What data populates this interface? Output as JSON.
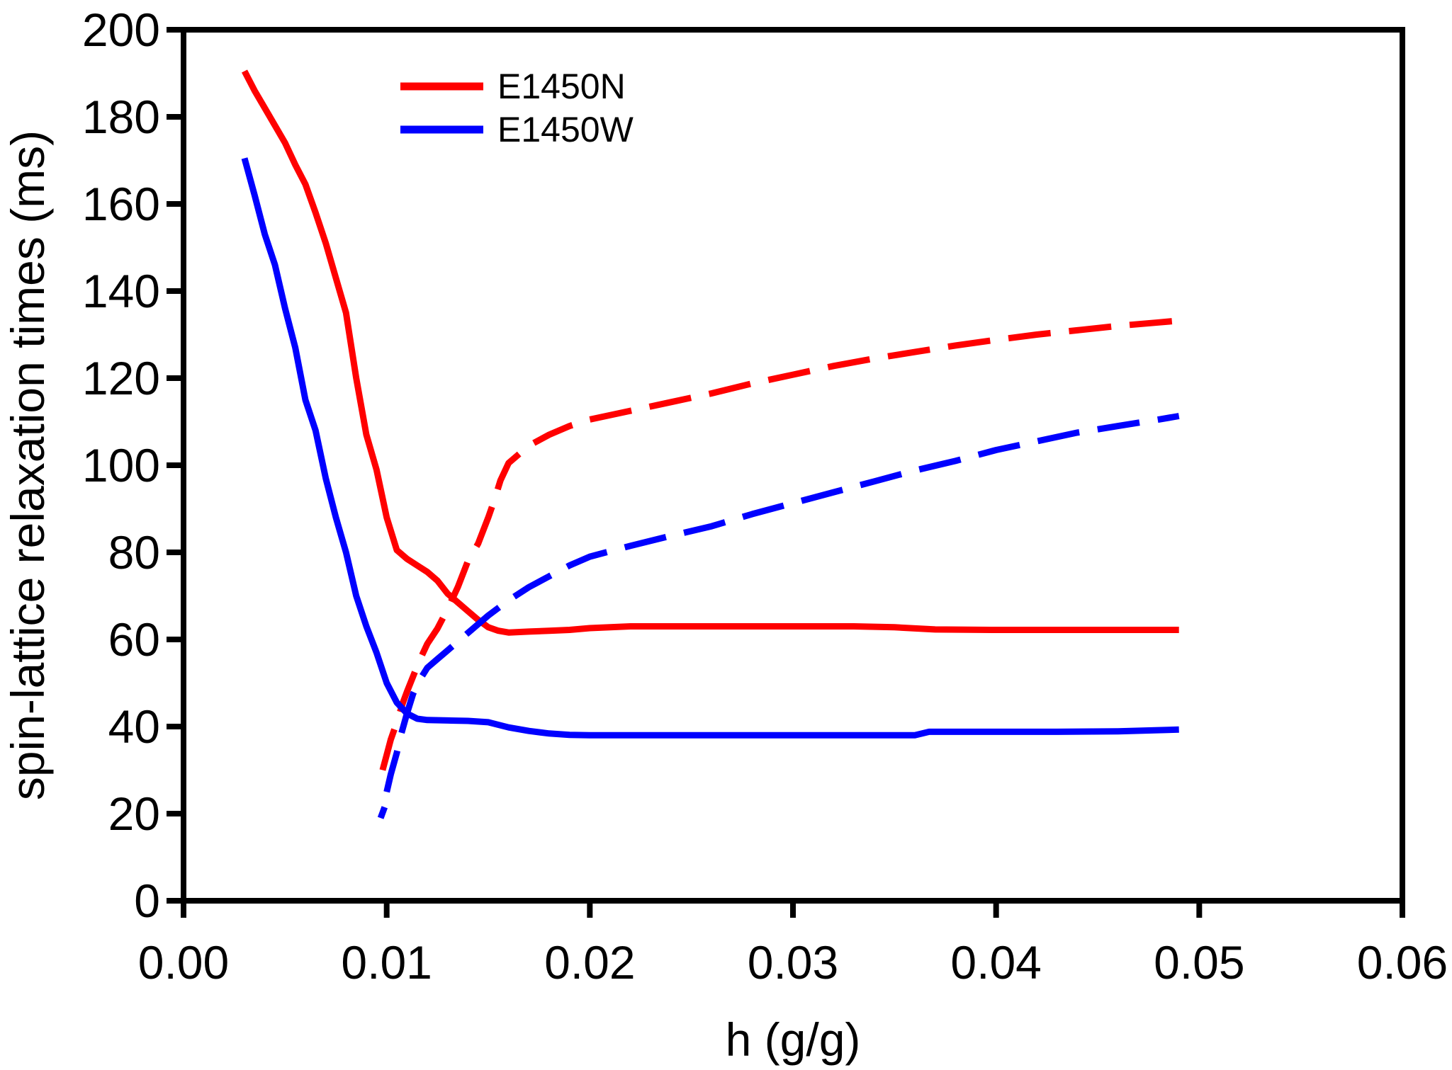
{
  "chart_data": {
    "type": "line",
    "title": "",
    "xlabel": "h (g/g)",
    "ylabel": "spin-lattice relaxation times (ms)",
    "xlim": [
      0,
      0.06
    ],
    "ylim": [
      0,
      200
    ],
    "grid": false,
    "legend_position": "upper-left-inside",
    "x_ticks": {
      "values": [
        0,
        0.01,
        0.02,
        0.03,
        0.04,
        0.05,
        0.06
      ],
      "labels": [
        "0.00",
        "0.01",
        "0.02",
        "0.03",
        "0.04",
        "0.05",
        "0.06"
      ]
    },
    "y_ticks": {
      "values": [
        0,
        20,
        40,
        60,
        80,
        100,
        120,
        140,
        160,
        180,
        200
      ],
      "labels": [
        "0",
        "20",
        "40",
        "60",
        "80",
        "100",
        "120",
        "140",
        "160",
        "180",
        "200"
      ]
    },
    "legend": [
      {
        "label": "E1450N",
        "color": "#ff0000"
      },
      {
        "label": "E1450W",
        "color": "#0000ff"
      }
    ],
    "series": [
      {
        "name": "E1450N-solid",
        "color": "#ff0000",
        "style": "solid",
        "points": [
          [
            0.003,
            190.5
          ],
          [
            0.0035,
            186
          ],
          [
            0.004,
            182
          ],
          [
            0.0045,
            178
          ],
          [
            0.005,
            174
          ],
          [
            0.0055,
            169
          ],
          [
            0.006,
            164.5
          ],
          [
            0.0065,
            158
          ],
          [
            0.007,
            151
          ],
          [
            0.0075,
            143
          ],
          [
            0.008,
            135
          ],
          [
            0.0085,
            120
          ],
          [
            0.009,
            107
          ],
          [
            0.0095,
            99
          ],
          [
            0.01,
            88
          ],
          [
            0.0105,
            80.5
          ],
          [
            0.011,
            78.5
          ],
          [
            0.0115,
            77
          ],
          [
            0.012,
            75.5
          ],
          [
            0.0125,
            73.5
          ],
          [
            0.013,
            70.5
          ],
          [
            0.0135,
            68.5
          ],
          [
            0.014,
            66.5
          ],
          [
            0.0145,
            64.5
          ],
          [
            0.015,
            62.8
          ],
          [
            0.0155,
            62
          ],
          [
            0.016,
            61.6
          ],
          [
            0.017,
            61.8
          ],
          [
            0.018,
            62
          ],
          [
            0.019,
            62.2
          ],
          [
            0.02,
            62.6
          ],
          [
            0.022,
            63
          ],
          [
            0.025,
            63
          ],
          [
            0.028,
            63
          ],
          [
            0.03,
            63
          ],
          [
            0.033,
            63
          ],
          [
            0.035,
            62.8
          ],
          [
            0.037,
            62.3
          ],
          [
            0.04,
            62.2
          ],
          [
            0.043,
            62.2
          ],
          [
            0.046,
            62.2
          ],
          [
            0.049,
            62.2
          ]
        ]
      },
      {
        "name": "E1450N-dashed",
        "color": "#ff0000",
        "style": "dashed",
        "points": [
          [
            0.0098,
            30
          ],
          [
            0.01,
            33.5
          ],
          [
            0.0102,
            37
          ],
          [
            0.0105,
            41
          ],
          [
            0.0108,
            45.5
          ],
          [
            0.011,
            48
          ],
          [
            0.0113,
            51.5
          ],
          [
            0.0116,
            55
          ],
          [
            0.012,
            59
          ],
          [
            0.0125,
            62.5
          ],
          [
            0.013,
            67
          ],
          [
            0.0135,
            72
          ],
          [
            0.014,
            78
          ],
          [
            0.0145,
            82
          ],
          [
            0.015,
            88
          ],
          [
            0.0153,
            92
          ],
          [
            0.0156,
            96.5
          ],
          [
            0.016,
            100.5
          ],
          [
            0.0165,
            102.5
          ],
          [
            0.017,
            104.5
          ],
          [
            0.018,
            107
          ],
          [
            0.019,
            109
          ],
          [
            0.02,
            110.5
          ],
          [
            0.022,
            112.5
          ],
          [
            0.024,
            114.5
          ],
          [
            0.026,
            116.5
          ],
          [
            0.028,
            118.8
          ],
          [
            0.03,
            120.8
          ],
          [
            0.032,
            122.8
          ],
          [
            0.034,
            124.5
          ],
          [
            0.036,
            126
          ],
          [
            0.038,
            127.5
          ],
          [
            0.04,
            128.8
          ],
          [
            0.042,
            130
          ],
          [
            0.044,
            131
          ],
          [
            0.046,
            132
          ],
          [
            0.048,
            132.8
          ],
          [
            0.049,
            133.2
          ]
        ]
      },
      {
        "name": "E1450W-solid",
        "color": "#0000ff",
        "style": "solid",
        "points": [
          [
            0.003,
            170.5
          ],
          [
            0.0035,
            162
          ],
          [
            0.004,
            153
          ],
          [
            0.0045,
            146
          ],
          [
            0.005,
            136
          ],
          [
            0.0055,
            127
          ],
          [
            0.006,
            115
          ],
          [
            0.0065,
            108
          ],
          [
            0.007,
            97
          ],
          [
            0.0075,
            88
          ],
          [
            0.008,
            80
          ],
          [
            0.0085,
            70
          ],
          [
            0.009,
            63
          ],
          [
            0.0095,
            57
          ],
          [
            0.01,
            50
          ],
          [
            0.0105,
            45.5
          ],
          [
            0.011,
            43
          ],
          [
            0.0115,
            41.8
          ],
          [
            0.012,
            41.5
          ],
          [
            0.013,
            41.4
          ],
          [
            0.014,
            41.3
          ],
          [
            0.015,
            41
          ],
          [
            0.016,
            39.8
          ],
          [
            0.017,
            39
          ],
          [
            0.018,
            38.4
          ],
          [
            0.019,
            38.1
          ],
          [
            0.02,
            38
          ],
          [
            0.023,
            38
          ],
          [
            0.026,
            38
          ],
          [
            0.03,
            38
          ],
          [
            0.033,
            38
          ],
          [
            0.036,
            38
          ],
          [
            0.0367,
            38.8
          ],
          [
            0.04,
            38.8
          ],
          [
            0.043,
            38.8
          ],
          [
            0.046,
            38.9
          ],
          [
            0.049,
            39.3
          ]
        ]
      },
      {
        "name": "E1450W-dashed",
        "color": "#0000ff",
        "style": "dashed",
        "points": [
          [
            0.01,
            25
          ],
          [
            0.0102,
            29
          ],
          [
            0.0105,
            34
          ],
          [
            0.0107,
            38
          ],
          [
            0.011,
            43
          ],
          [
            0.0113,
            47.5
          ],
          [
            0.0116,
            50.5
          ],
          [
            0.012,
            53.5
          ],
          [
            0.0125,
            55.5
          ],
          [
            0.013,
            57.5
          ],
          [
            0.0135,
            59.5
          ],
          [
            0.014,
            61.5
          ],
          [
            0.015,
            65.5
          ],
          [
            0.016,
            69
          ],
          [
            0.017,
            72
          ],
          [
            0.018,
            74.5
          ],
          [
            0.019,
            77
          ],
          [
            0.02,
            79
          ],
          [
            0.022,
            81.5
          ],
          [
            0.024,
            83.8
          ],
          [
            0.026,
            86
          ],
          [
            0.028,
            88.8
          ],
          [
            0.03,
            91.3
          ],
          [
            0.032,
            93.8
          ],
          [
            0.034,
            96.3
          ],
          [
            0.036,
            98.8
          ],
          [
            0.038,
            101
          ],
          [
            0.04,
            103.5
          ],
          [
            0.042,
            105.5
          ],
          [
            0.044,
            107.5
          ],
          [
            0.046,
            109
          ],
          [
            0.048,
            110.5
          ],
          [
            0.049,
            111.3
          ]
        ]
      },
      {
        "name": "E1450W-start-dot",
        "color": "#0000ff",
        "style": "solid",
        "points": [
          [
            0.0097,
            19
          ],
          [
            0.0099,
            21.5
          ]
        ]
      }
    ]
  },
  "style": {
    "axis_color": "#000000",
    "background": "#ffffff"
  }
}
